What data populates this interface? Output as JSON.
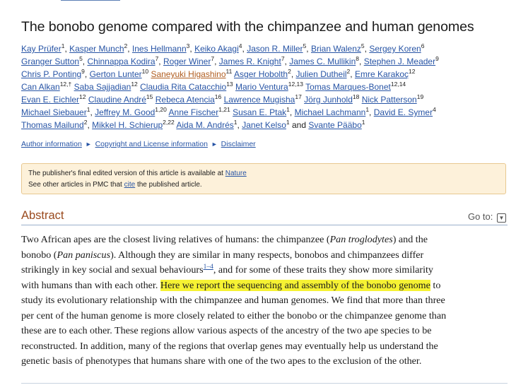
{
  "article": {
    "title": "The bonobo genome compared with the chimpanzee and human genomes"
  },
  "authors": [
    {
      "name": "Kay Prüfer",
      "aff": "1",
      "sep": ","
    },
    {
      "name": "Kasper Munch",
      "aff": "2",
      "sep": ","
    },
    {
      "name": "Ines Hellmann",
      "aff": "3",
      "sep": ","
    },
    {
      "name": "Keiko Akagi",
      "aff": "4",
      "sep": ","
    },
    {
      "name": "Jason R. Miller",
      "aff": "5",
      "sep": ","
    },
    {
      "name": "Brian Walenz",
      "aff": "5",
      "sep": ","
    },
    {
      "name": "Sergey Koren",
      "aff": "6",
      "sep": ""
    },
    {
      "name": "Granger Sutton",
      "aff": "5",
      "sep": ","
    },
    {
      "name": "Chinnappa Kodira",
      "aff": "7",
      "sep": ","
    },
    {
      "name": "Roger Winer",
      "aff": "7",
      "sep": ","
    },
    {
      "name": "James R. Knight",
      "aff": "7",
      "sep": ","
    },
    {
      "name": "James C. Mullikin",
      "aff": "8",
      "sep": ","
    },
    {
      "name": "Stephen J. Meader",
      "aff": "9",
      "sep": ""
    },
    {
      "name": "Chris P. Ponting",
      "aff": "9",
      "sep": ","
    },
    {
      "name": "Gerton Lunter",
      "aff": "10",
      "sep": ""
    },
    {
      "name": "Saneyuki Higashino",
      "aff": "11",
      "sep": ""
    },
    {
      "name": "Asger Hobolth",
      "aff": "2",
      "sep": ","
    },
    {
      "name": "Julien Dutheil",
      "aff": "2",
      "sep": ","
    },
    {
      "name": "Emre Karakoç",
      "aff": "12",
      "sep": ""
    },
    {
      "name": "Can Alkan",
      "aff": "12,†",
      "sep": ""
    },
    {
      "name": "Saba Sajjadian",
      "aff": "12",
      "sep": ""
    },
    {
      "name": "Claudia Rita Catacchio",
      "aff": "13",
      "sep": ""
    },
    {
      "name": "Mario Ventura",
      "aff": "12,13",
      "sep": ""
    },
    {
      "name": "Tomas Marques-Bonet",
      "aff": "12,14",
      "sep": ""
    },
    {
      "name": "Evan E. Eichler",
      "aff": "12",
      "sep": ""
    },
    {
      "name": "Claudine André",
      "aff": "15",
      "sep": ""
    },
    {
      "name": "Rebeca Atencia",
      "aff": "16",
      "sep": ""
    },
    {
      "name": "Lawrence Mugisha",
      "aff": "17",
      "sep": ""
    },
    {
      "name": "Jörg Junhold",
      "aff": "18",
      "sep": ""
    },
    {
      "name": "Nick Patterson",
      "aff": "19",
      "sep": ""
    },
    {
      "name": "Michael Siebauer",
      "aff": "1",
      "sep": ","
    },
    {
      "name": "Jeffrey M. Good",
      "aff": "1,20",
      "sep": ""
    },
    {
      "name": "Anne Fischer",
      "aff": "1,21",
      "sep": ""
    },
    {
      "name": "Susan E. Ptak",
      "aff": "1",
      "sep": ","
    },
    {
      "name": "Michael Lachmann",
      "aff": "1",
      "sep": ","
    },
    {
      "name": "David E. Symer",
      "aff": "4",
      "sep": ""
    },
    {
      "name": "Thomas Mailund",
      "aff": "2",
      "sep": ","
    },
    {
      "name": "Mikkel H. Schierup",
      "aff": "2,22",
      "sep": ""
    },
    {
      "name": "Aida M. Andrés",
      "aff": "1",
      "sep": ","
    },
    {
      "name": "Janet Kelso",
      "aff": "1",
      "sep": ""
    },
    {
      "name": "Svante Pääbo",
      "aff": "1",
      "sep": ""
    }
  ],
  "authors_and": "and",
  "links": {
    "author_info": "Author information",
    "copyright": "Copyright and License information",
    "disclaimer": "Disclaimer"
  },
  "notice": {
    "line1_prefix": "The publisher's final edited version of this article is available at",
    "publisher": "Nature",
    "line2_prefix": "See other articles in PMC that",
    "cite": "cite",
    "line2_suffix": "the published article."
  },
  "abstract": {
    "heading": "Abstract",
    "goto": "Go to:",
    "lines": {
      "l1a": "Two African apes are the closest living relatives of humans: the chimpanzee (",
      "l1b": "Pan troglodytes",
      "l1c": ") and the",
      "l2a": "bonobo (",
      "l2b": "Pan paniscus",
      "l2c": "). Although they are similar in many respects, bonobos and chimpanzees differ",
      "l3a": "strikingly in key social and sexual behaviours",
      "l3ref": "1–4",
      "l3b": ", and for some of these traits they show more similarity",
      "l4a": "with humans than with each other.",
      "l4hl": "Here we report the sequencing and assembly of the bonobo genome",
      "l4b": "to",
      "l5": "study its evolutionary relationship with the chimpanzee and human genomes. We find that more than three",
      "l6": "per cent of the human genome is more closely related to either the bonobo or the chimpanzee genome than",
      "l7": "these are to each other. These regions allow various aspects of the ancestry of the two ape species to be",
      "l8": "reconstructed. In addition, many of the regions that overlap genes may eventually help us understand the",
      "l9": "genetic basis of phenotypes that humans share with one of the two apes to the exclusion of the other."
    }
  },
  "colors": {
    "link": "#2754a5",
    "visited_link": "#b05d20",
    "heading": "#9a4a1e",
    "highlight": "#f6f233",
    "notice_bg": "#fdf1da"
  }
}
